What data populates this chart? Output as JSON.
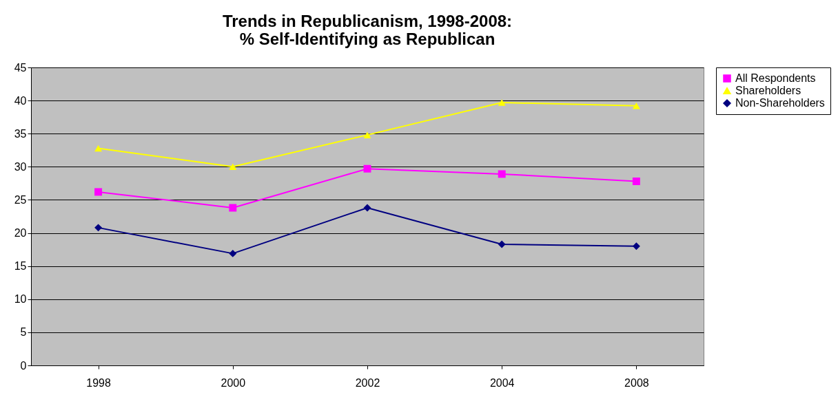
{
  "chart_data": {
    "type": "line",
    "title": "Trends in Republicanism, 1998-2008:\n% Self-Identifying as Republican",
    "categories": [
      "1998",
      "2000",
      "2002",
      "2004",
      "2008"
    ],
    "series": [
      {
        "name": "All Respondents",
        "color": "#ff00ff",
        "marker": "square",
        "values": [
          26.2,
          23.8,
          29.7,
          28.9,
          27.8
        ]
      },
      {
        "name": "Shareholders",
        "color": "#ffff00",
        "marker": "triangle",
        "values": [
          32.8,
          30.0,
          34.8,
          39.7,
          39.2
        ]
      },
      {
        "name": "Non-Shareholders",
        "color": "#000080",
        "marker": "diamond",
        "values": [
          20.8,
          16.9,
          23.8,
          18.3,
          18.0
        ]
      }
    ],
    "ylim": [
      0,
      45
    ],
    "yticks": [
      0,
      5,
      10,
      15,
      20,
      25,
      30,
      35,
      40,
      45
    ],
    "grid": "y",
    "legend": "right",
    "line_style": "solid"
  }
}
